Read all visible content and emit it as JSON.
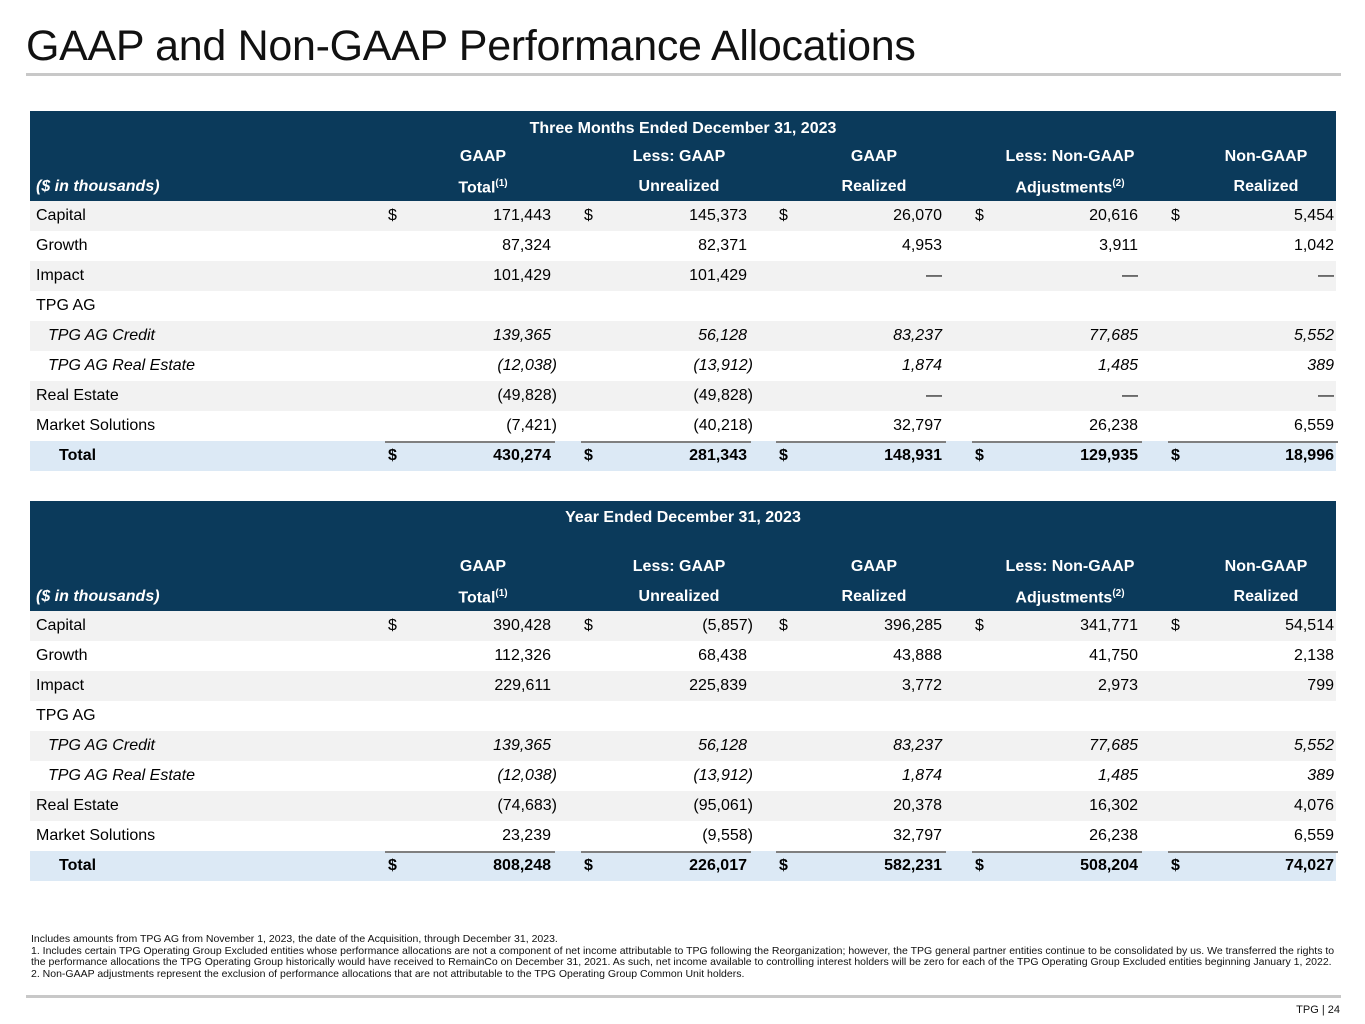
{
  "title": "GAAP and Non-GAAP Performance Allocations",
  "tables": [
    {
      "caption": "Three Months Ended December 31, 2023",
      "unit_label": "($ in thousands)",
      "columns": [
        {
          "line1": "GAAP",
          "line2": "Total",
          "sup": "(1)"
        },
        {
          "line1": "Less: GAAP",
          "line2": "Unrealized",
          "sup": ""
        },
        {
          "line1": "GAAP",
          "line2": "Realized",
          "sup": ""
        },
        {
          "line1": "Less: Non-GAAP",
          "line2": "Adjustments",
          "sup": "(2)"
        },
        {
          "line1": "Non-GAAP",
          "line2": "Realized",
          "sup": ""
        }
      ],
      "rows": [
        {
          "label": "Capital",
          "style": "normal",
          "dollar": true,
          "values": [
            "171,443",
            "145,373",
            "26,070",
            "20,616",
            "5,454"
          ]
        },
        {
          "label": "Growth",
          "style": "normal",
          "dollar": false,
          "values": [
            "87,324",
            "82,371",
            "4,953",
            "3,911",
            "1,042"
          ]
        },
        {
          "label": "Impact",
          "style": "normal",
          "dollar": false,
          "values": [
            "101,429",
            "101,429",
            "—",
            "—",
            "—"
          ]
        },
        {
          "label": "TPG AG",
          "style": "normal",
          "dollar": false,
          "values": [
            "",
            "",
            "",
            "",
            ""
          ]
        },
        {
          "label": "TPG AG Credit",
          "style": "italic",
          "dollar": false,
          "values": [
            "139,365",
            "56,128",
            "83,237",
            "77,685",
            "5,552"
          ]
        },
        {
          "label": "TPG AG Real Estate",
          "style": "italic",
          "dollar": false,
          "values": [
            "(12,038)",
            "(13,912)",
            "1,874",
            "1,485",
            "389"
          ]
        },
        {
          "label": "Real Estate",
          "style": "normal",
          "dollar": false,
          "values": [
            "(49,828)",
            "(49,828)",
            "—",
            "—",
            "—"
          ]
        },
        {
          "label": "Market Solutions",
          "style": "normal",
          "dollar": false,
          "values": [
            "(7,421)",
            "(40,218)",
            "32,797",
            "26,238",
            "6,559"
          ]
        },
        {
          "label": "Total",
          "style": "total",
          "dollar": true,
          "values": [
            "430,274",
            "281,343",
            "148,931",
            "129,935",
            "18,996"
          ]
        }
      ]
    },
    {
      "caption": "Year Ended December 31, 2023",
      "unit_label": "($ in thousands)",
      "columns": [
        {
          "line1": "GAAP",
          "line2": "Total",
          "sup": "(1)"
        },
        {
          "line1": "Less: GAAP",
          "line2": "Unrealized",
          "sup": ""
        },
        {
          "line1": "GAAP",
          "line2": "Realized",
          "sup": ""
        },
        {
          "line1": "Less: Non-GAAP",
          "line2": "Adjustments",
          "sup": "(2)"
        },
        {
          "line1": "Non-GAAP",
          "line2": "Realized",
          "sup": ""
        }
      ],
      "rows": [
        {
          "label": "Capital",
          "style": "normal",
          "dollar": true,
          "values": [
            "390,428",
            "(5,857)",
            "396,285",
            "341,771",
            "54,514"
          ]
        },
        {
          "label": "Growth",
          "style": "normal",
          "dollar": false,
          "values": [
            "112,326",
            "68,438",
            "43,888",
            "41,750",
            "2,138"
          ]
        },
        {
          "label": "Impact",
          "style": "normal",
          "dollar": false,
          "values": [
            "229,611",
            "225,839",
            "3,772",
            "2,973",
            "799"
          ]
        },
        {
          "label": "TPG AG",
          "style": "normal",
          "dollar": false,
          "values": [
            "",
            "",
            "",
            "",
            ""
          ]
        },
        {
          "label": "TPG AG Credit",
          "style": "italic",
          "dollar": false,
          "values": [
            "139,365",
            "56,128",
            "83,237",
            "77,685",
            "5,552"
          ]
        },
        {
          "label": "TPG AG Real Estate",
          "style": "italic",
          "dollar": false,
          "values": [
            "(12,038)",
            "(13,912)",
            "1,874",
            "1,485",
            "389"
          ]
        },
        {
          "label": "Real Estate",
          "style": "normal",
          "dollar": false,
          "values": [
            "(74,683)",
            "(95,061)",
            "20,378",
            "16,302",
            "4,076"
          ]
        },
        {
          "label": "Market Solutions",
          "style": "normal",
          "dollar": false,
          "values": [
            "23,239",
            "(9,558)",
            "32,797",
            "26,238",
            "6,559"
          ]
        },
        {
          "label": "Total",
          "style": "total",
          "dollar": true,
          "values": [
            "808,248",
            "226,017",
            "582,231",
            "508,204",
            "74,027"
          ]
        }
      ]
    }
  ],
  "dollar_sign": "$",
  "footnotes": [
    "Includes amounts from TPG AG from November 1, 2023, the date of the Acquisition, through December 31, 2023.",
    "1. Includes certain TPG Operating Group Excluded entities whose performance allocations are not a component of net income attributable to TPG following the Reorganization; however, the TPG general partner entities continue to be consolidated by us. We transferred the rights to the performance allocations the TPG Operating Group historically would have received to RemainCo on December 31, 2021. As such, net income available to controlling interest holders will be zero for each of the TPG Operating Group Excluded entities beginning January 1, 2022.",
    "2. Non-GAAP adjustments represent the exclusion of performance allocations that are not attributable to the TPG Operating Group Common Unit holders."
  ],
  "page_number": "TPG | 24",
  "colors": {
    "header_bg": "#0b3a5b",
    "alt_row": "#f2f2f2",
    "total_row": "#dce9f5"
  }
}
